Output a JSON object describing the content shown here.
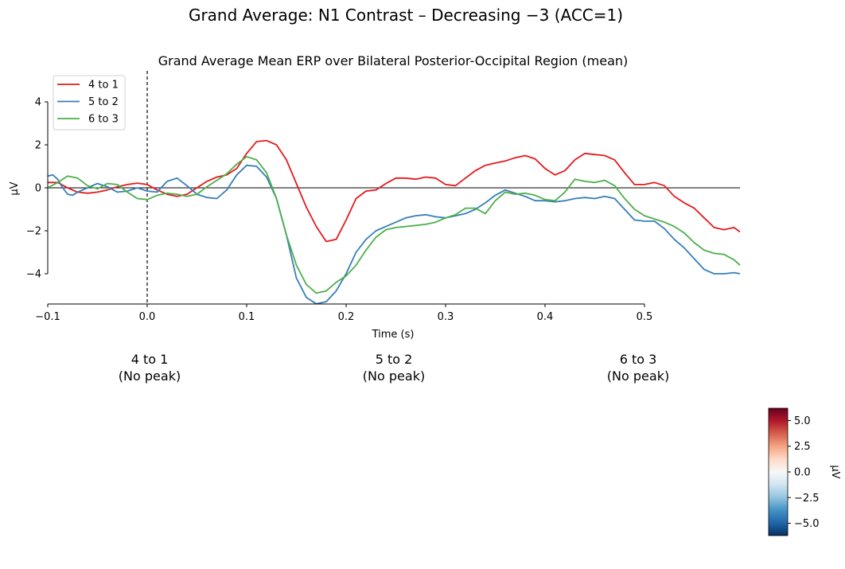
{
  "figure": {
    "suptitle": "Grand Average: N1 Contrast – Decreasing −3 (ACC=1)"
  },
  "chart_data": {
    "type": "line",
    "title": "Grand Average Mean ERP over Bilateral Posterior-Occipital Region (mean)",
    "xlabel": "Time (s)",
    "ylabel": "µV",
    "xlim": [
      -0.1,
      0.596
    ],
    "ylim": [
      -5.4,
      5.4
    ],
    "x_ticks": [
      "−0.1",
      "0.0",
      "0.1",
      "0.2",
      "0.3",
      "0.4",
      "0.5"
    ],
    "y_ticks": [
      "−4",
      "−2",
      "0",
      "2",
      "4"
    ],
    "x_tick_values": [
      -0.1,
      0.0,
      0.1,
      0.2,
      0.3,
      0.4,
      0.5
    ],
    "y_tick_values": [
      -4,
      -2,
      0,
      2,
      4
    ],
    "stimulus_onset": 0.0,
    "zero_line": 0,
    "grid": false,
    "legend_position": "top-left",
    "series": [
      {
        "name": "4 to 1",
        "color": "#e41a1c",
        "points": [
          [
            -0.1,
            0.25
          ],
          [
            -0.09,
            0.25
          ],
          [
            -0.08,
            0.0
          ],
          [
            -0.07,
            -0.2
          ],
          [
            -0.06,
            -0.25
          ],
          [
            -0.05,
            -0.2
          ],
          [
            -0.04,
            -0.1
          ],
          [
            -0.03,
            0.05
          ],
          [
            -0.02,
            0.15
          ],
          [
            -0.01,
            0.22
          ],
          [
            0.0,
            0.15
          ],
          [
            0.01,
            -0.1
          ],
          [
            0.02,
            -0.3
          ],
          [
            0.03,
            -0.4
          ],
          [
            0.04,
            -0.3
          ],
          [
            0.05,
            0.0
          ],
          [
            0.06,
            0.3
          ],
          [
            0.07,
            0.5
          ],
          [
            0.08,
            0.6
          ],
          [
            0.09,
            0.9
          ],
          [
            0.1,
            1.6
          ],
          [
            0.11,
            2.15
          ],
          [
            0.12,
            2.2
          ],
          [
            0.13,
            2.0
          ],
          [
            0.14,
            1.3
          ],
          [
            0.15,
            0.2
          ],
          [
            0.16,
            -0.9
          ],
          [
            0.17,
            -1.8
          ],
          [
            0.18,
            -2.5
          ],
          [
            0.19,
            -2.4
          ],
          [
            0.2,
            -1.5
          ],
          [
            0.21,
            -0.5
          ],
          [
            0.22,
            -0.15
          ],
          [
            0.23,
            -0.1
          ],
          [
            0.24,
            0.2
          ],
          [
            0.25,
            0.45
          ],
          [
            0.26,
            0.45
          ],
          [
            0.27,
            0.4
          ],
          [
            0.28,
            0.5
          ],
          [
            0.29,
            0.45
          ],
          [
            0.3,
            0.15
          ],
          [
            0.31,
            0.1
          ],
          [
            0.32,
            0.45
          ],
          [
            0.33,
            0.8
          ],
          [
            0.34,
            1.05
          ],
          [
            0.35,
            1.15
          ],
          [
            0.36,
            1.25
          ],
          [
            0.37,
            1.4
          ],
          [
            0.38,
            1.5
          ],
          [
            0.39,
            1.35
          ],
          [
            0.4,
            0.9
          ],
          [
            0.41,
            0.6
          ],
          [
            0.42,
            0.8
          ],
          [
            0.43,
            1.3
          ],
          [
            0.44,
            1.6
          ],
          [
            0.45,
            1.55
          ],
          [
            0.46,
            1.5
          ],
          [
            0.47,
            1.3
          ],
          [
            0.48,
            0.7
          ],
          [
            0.49,
            0.15
          ],
          [
            0.5,
            0.15
          ],
          [
            0.51,
            0.25
          ],
          [
            0.52,
            0.1
          ],
          [
            0.53,
            -0.4
          ],
          [
            0.54,
            -0.7
          ],
          [
            0.55,
            -0.95
          ],
          [
            0.56,
            -1.4
          ],
          [
            0.57,
            -1.85
          ],
          [
            0.58,
            -1.95
          ],
          [
            0.59,
            -1.85
          ],
          [
            0.596,
            -2.05
          ]
        ]
      },
      {
        "name": "5 to 2",
        "color": "#377eb8",
        "points": [
          [
            -0.1,
            0.55
          ],
          [
            -0.095,
            0.6
          ],
          [
            -0.09,
            0.4
          ],
          [
            -0.085,
            0.0
          ],
          [
            -0.08,
            -0.3
          ],
          [
            -0.075,
            -0.35
          ],
          [
            -0.07,
            -0.2
          ],
          [
            -0.06,
            0.0
          ],
          [
            -0.05,
            0.2
          ],
          [
            -0.04,
            0.05
          ],
          [
            -0.03,
            -0.2
          ],
          [
            -0.02,
            -0.15
          ],
          [
            -0.01,
            0.0
          ],
          [
            0.0,
            -0.15
          ],
          [
            0.01,
            -0.2
          ],
          [
            0.02,
            0.3
          ],
          [
            0.03,
            0.45
          ],
          [
            0.04,
            0.1
          ],
          [
            0.05,
            -0.3
          ],
          [
            0.06,
            -0.45
          ],
          [
            0.07,
            -0.5
          ],
          [
            0.08,
            -0.1
          ],
          [
            0.09,
            0.6
          ],
          [
            0.1,
            1.05
          ],
          [
            0.11,
            1.0
          ],
          [
            0.12,
            0.5
          ],
          [
            0.13,
            -0.5
          ],
          [
            0.14,
            -2.2
          ],
          [
            0.15,
            -4.2
          ],
          [
            0.16,
            -5.1
          ],
          [
            0.17,
            -5.4
          ],
          [
            0.18,
            -5.3
          ],
          [
            0.19,
            -4.8
          ],
          [
            0.2,
            -4.0
          ],
          [
            0.21,
            -3.0
          ],
          [
            0.22,
            -2.4
          ],
          [
            0.23,
            -2.0
          ],
          [
            0.24,
            -1.8
          ],
          [
            0.25,
            -1.6
          ],
          [
            0.26,
            -1.4
          ],
          [
            0.27,
            -1.3
          ],
          [
            0.28,
            -1.25
          ],
          [
            0.29,
            -1.35
          ],
          [
            0.3,
            -1.4
          ],
          [
            0.31,
            -1.3
          ],
          [
            0.32,
            -1.2
          ],
          [
            0.33,
            -1.0
          ],
          [
            0.34,
            -0.7
          ],
          [
            0.35,
            -0.35
          ],
          [
            0.36,
            -0.1
          ],
          [
            0.37,
            -0.25
          ],
          [
            0.38,
            -0.4
          ],
          [
            0.39,
            -0.6
          ],
          [
            0.4,
            -0.6
          ],
          [
            0.41,
            -0.65
          ],
          [
            0.42,
            -0.6
          ],
          [
            0.43,
            -0.5
          ],
          [
            0.44,
            -0.45
          ],
          [
            0.45,
            -0.5
          ],
          [
            0.46,
            -0.4
          ],
          [
            0.47,
            -0.5
          ],
          [
            0.48,
            -1.0
          ],
          [
            0.49,
            -1.5
          ],
          [
            0.5,
            -1.55
          ],
          [
            0.51,
            -1.55
          ],
          [
            0.52,
            -1.9
          ],
          [
            0.53,
            -2.4
          ],
          [
            0.54,
            -2.8
          ],
          [
            0.55,
            -3.3
          ],
          [
            0.56,
            -3.8
          ],
          [
            0.57,
            -4.0
          ],
          [
            0.58,
            -4.0
          ],
          [
            0.59,
            -3.95
          ],
          [
            0.596,
            -4.0
          ]
        ]
      },
      {
        "name": "6 to 3",
        "color": "#4daf4a",
        "points": [
          [
            -0.1,
            0.0
          ],
          [
            -0.09,
            0.25
          ],
          [
            -0.08,
            0.55
          ],
          [
            -0.07,
            0.45
          ],
          [
            -0.06,
            0.1
          ],
          [
            -0.05,
            -0.05
          ],
          [
            -0.04,
            0.2
          ],
          [
            -0.03,
            0.15
          ],
          [
            -0.02,
            -0.2
          ],
          [
            -0.01,
            -0.5
          ],
          [
            0.0,
            -0.55
          ],
          [
            0.01,
            -0.35
          ],
          [
            0.02,
            -0.25
          ],
          [
            0.03,
            -0.3
          ],
          [
            0.04,
            -0.4
          ],
          [
            0.05,
            -0.3
          ],
          [
            0.06,
            0.05
          ],
          [
            0.07,
            0.35
          ],
          [
            0.08,
            0.65
          ],
          [
            0.09,
            1.1
          ],
          [
            0.1,
            1.45
          ],
          [
            0.11,
            1.3
          ],
          [
            0.12,
            0.7
          ],
          [
            0.13,
            -0.5
          ],
          [
            0.14,
            -2.2
          ],
          [
            0.15,
            -3.6
          ],
          [
            0.16,
            -4.5
          ],
          [
            0.17,
            -4.9
          ],
          [
            0.18,
            -4.8
          ],
          [
            0.19,
            -4.4
          ],
          [
            0.2,
            -4.1
          ],
          [
            0.21,
            -3.6
          ],
          [
            0.22,
            -2.9
          ],
          [
            0.23,
            -2.3
          ],
          [
            0.24,
            -1.95
          ],
          [
            0.25,
            -1.85
          ],
          [
            0.26,
            -1.8
          ],
          [
            0.27,
            -1.75
          ],
          [
            0.28,
            -1.7
          ],
          [
            0.29,
            -1.6
          ],
          [
            0.3,
            -1.4
          ],
          [
            0.31,
            -1.25
          ],
          [
            0.32,
            -0.95
          ],
          [
            0.33,
            -0.95
          ],
          [
            0.34,
            -1.2
          ],
          [
            0.35,
            -0.6
          ],
          [
            0.36,
            -0.2
          ],
          [
            0.37,
            -0.3
          ],
          [
            0.38,
            -0.25
          ],
          [
            0.39,
            -0.35
          ],
          [
            0.4,
            -0.55
          ],
          [
            0.41,
            -0.6
          ],
          [
            0.42,
            -0.2
          ],
          [
            0.43,
            0.4
          ],
          [
            0.44,
            0.3
          ],
          [
            0.45,
            0.25
          ],
          [
            0.46,
            0.35
          ],
          [
            0.47,
            0.1
          ],
          [
            0.48,
            -0.5
          ],
          [
            0.49,
            -1.0
          ],
          [
            0.5,
            -1.3
          ],
          [
            0.51,
            -1.45
          ],
          [
            0.52,
            -1.6
          ],
          [
            0.53,
            -1.8
          ],
          [
            0.54,
            -2.1
          ],
          [
            0.55,
            -2.55
          ],
          [
            0.56,
            -2.9
          ],
          [
            0.57,
            -3.05
          ],
          [
            0.58,
            -3.1
          ],
          [
            0.59,
            -3.35
          ],
          [
            0.596,
            -3.6
          ]
        ]
      }
    ]
  },
  "peak_labels": [
    {
      "name": "4 to 1",
      "status": "(No peak)"
    },
    {
      "name": "5 to 2",
      "status": "(No peak)"
    },
    {
      "name": "6 to 3",
      "status": "(No peak)"
    }
  ],
  "colorbar": {
    "label": "µV",
    "vmin": -6.2,
    "vmax": 6.2,
    "colormap": "RdBu_r",
    "stops": [
      "#053061",
      "#2166ac",
      "#4393c3",
      "#92c5de",
      "#d1e5f0",
      "#f7f7f7",
      "#fddbc7",
      "#f4a582",
      "#d6604d",
      "#b2182b",
      "#67001f"
    ],
    "ticks": [
      "5.0",
      "2.5",
      "0.0",
      "−2.5",
      "−5.0"
    ],
    "tick_values": [
      5.0,
      2.5,
      0.0,
      -2.5,
      -5.0
    ]
  }
}
